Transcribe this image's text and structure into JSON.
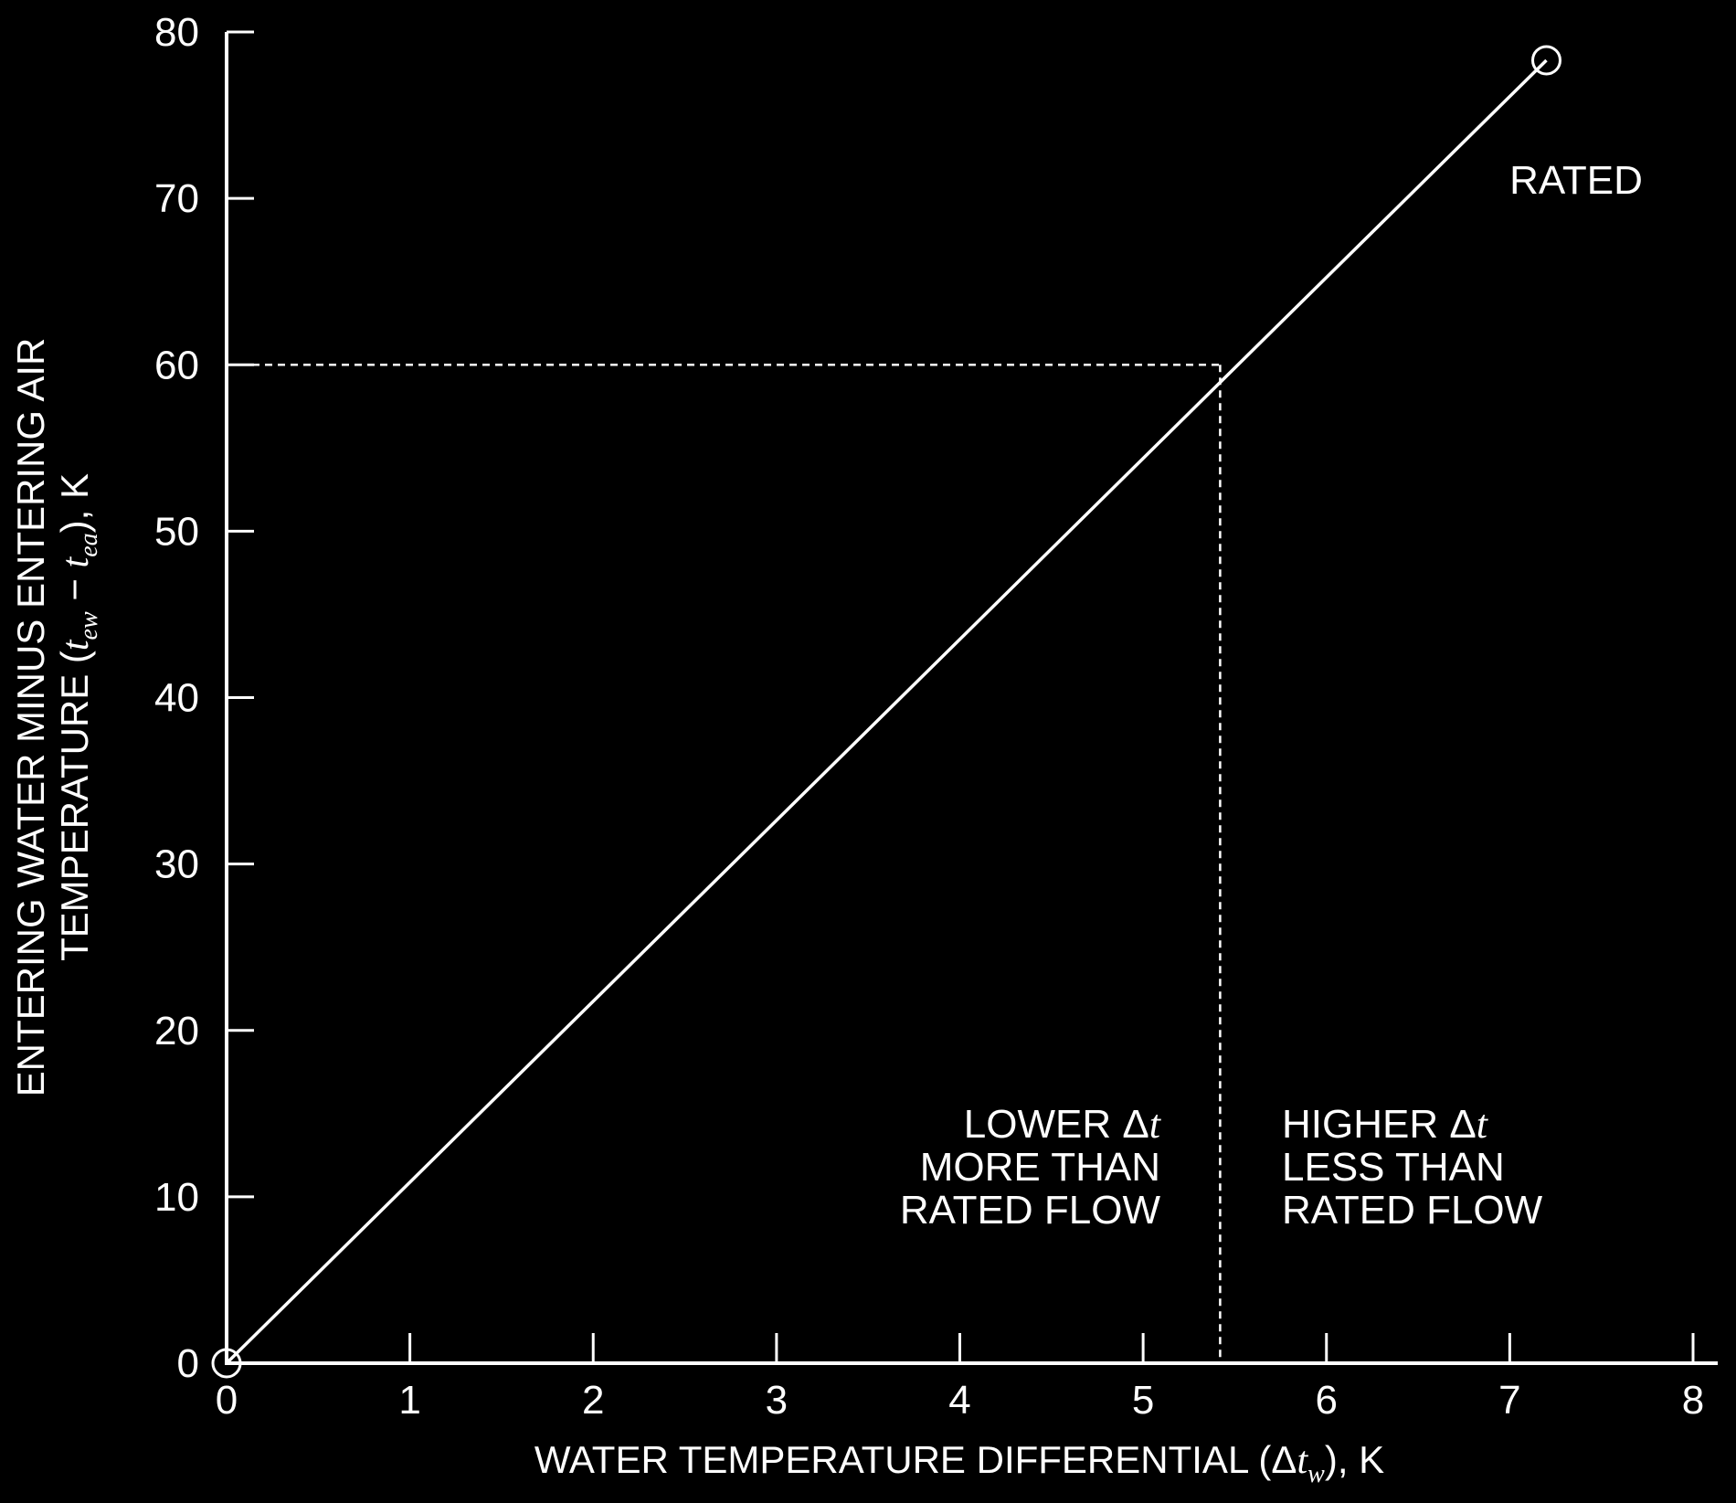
{
  "chart_data": {
    "type": "line",
    "title": "",
    "xlabel": {
      "prefix": "WATER TEMPERATURE DIFFERENTIAL  (",
      "delta": "Δ",
      "var": "t",
      "sub": "w",
      "suffix": "), K"
    },
    "ylabel": {
      "line1": "ENTERING WATER MINUS ENTERING AIR",
      "line2_prefix": "TEMPERATURE (",
      "var1": "t",
      "sub1": "ew",
      "minus": " − ",
      "var2": "t",
      "sub2": "ea",
      "line2_suffix": "), K"
    },
    "xlim": [
      0,
      8
    ],
    "ylim": [
      0,
      80
    ],
    "xticks": [
      "0",
      "1",
      "2",
      "3",
      "4",
      "5",
      "6",
      "7",
      "8"
    ],
    "yticks": [
      "0",
      "10",
      "20",
      "30",
      "40",
      "50",
      "60",
      "70",
      "80"
    ],
    "series": [
      {
        "name": "line",
        "x": [
          0,
          7.2
        ],
        "y": [
          0,
          78.3
        ]
      }
    ],
    "markers": [
      {
        "x": 0,
        "y": 0
      },
      {
        "x": 7.2,
        "y": 78.3
      }
    ],
    "reference_lines": {
      "x": 5.42,
      "y": 60
    },
    "annotations": {
      "rated": "RATED",
      "left": {
        "line1_prefix": "LOWER ",
        "line1_delta": "Δ",
        "line1_var": "t",
        "line2": "MORE THAN",
        "line3": "RATED FLOW"
      },
      "right": {
        "line1_prefix": "HIGHER ",
        "line1_delta": "Δ",
        "line1_var": "t",
        "line2": "LESS THAN",
        "line3": "RATED FLOW"
      }
    },
    "colors": {
      "background": "#000000",
      "foreground": "#ffffff"
    }
  }
}
